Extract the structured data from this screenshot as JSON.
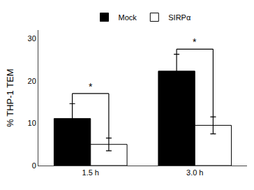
{
  "chart_data": {
    "type": "bar",
    "categories": [
      "1.5 h",
      "3.0 h"
    ],
    "ylabel": "% THP-1 TEM",
    "series": [
      {
        "name": "Mock",
        "color": "#000000",
        "values": [
          11.1,
          22.3
        ],
        "errors": [
          3.5,
          4.0
        ]
      },
      {
        "name": "SIRPα",
        "color": "#ffffff",
        "values": [
          5.0,
          9.5
        ],
        "errors": [
          1.5,
          2.0
        ]
      }
    ],
    "ylim": [
      0,
      32
    ],
    "yticks": [
      0,
      10,
      20,
      30
    ],
    "grid": false,
    "legend": "top",
    "annotations": [
      {
        "text": "*",
        "category": "1.5 h",
        "y": 17.0
      },
      {
        "text": "*",
        "category": "3.0 h",
        "y": 27.5
      }
    ]
  }
}
